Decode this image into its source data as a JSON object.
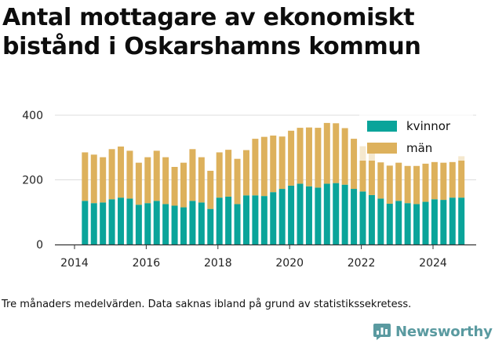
{
  "title": "Antal mottagare av ekonomiskt bistånd i Oskarshamns kommun",
  "caption": "Tre månaders medelvärden. Data saknas ibland på grund av statistikssekretess.",
  "brand": "Newsworthy",
  "colors": {
    "kvinnor": "#0aa49a",
    "man": "#ddb15c",
    "grid": "#dcdcdc",
    "axis": "#333333",
    "brand": "#5a9aa0"
  },
  "chart_data": {
    "type": "bar",
    "stacked": true,
    "x_tick_labels": [
      "2014",
      "2016",
      "2018",
      "2020",
      "2022",
      "2024"
    ],
    "y_ticks": [
      0,
      200,
      400
    ],
    "ylim": [
      0,
      400
    ],
    "legend_position": "top-right",
    "grid": "horizontal",
    "categories": [
      "2014-Q2",
      "2014-Q3",
      "2014-Q4",
      "2015-Q1",
      "2015-Q2",
      "2015-Q3",
      "2015-Q4",
      "2016-Q1",
      "2016-Q2",
      "2016-Q3",
      "2016-Q4",
      "2017-Q1",
      "2017-Q2",
      "2017-Q3",
      "2017-Q4",
      "2018-Q1",
      "2018-Q2",
      "2018-Q3",
      "2018-Q4",
      "2019-Q1",
      "2019-Q2",
      "2019-Q3",
      "2019-Q4",
      "2020-Q1",
      "2020-Q2",
      "2020-Q3",
      "2020-Q4",
      "2021-Q1",
      "2021-Q2",
      "2021-Q3",
      "2021-Q4",
      "2022-Q1",
      "2022-Q2",
      "2022-Q3",
      "2022-Q4",
      "2023-Q1",
      "2023-Q2",
      "2023-Q3",
      "2023-Q4",
      "2024-Q1",
      "2024-Q2",
      "2024-Q3",
      "2024-Q4"
    ],
    "series": [
      {
        "name": "kvinnor",
        "color": "#0aa49a",
        "values": [
          135,
          128,
          130,
          140,
          145,
          142,
          123,
          128,
          135,
          125,
          120,
          115,
          135,
          130,
          110,
          145,
          148,
          125,
          152,
          152,
          150,
          162,
          172,
          182,
          188,
          180,
          176,
          188,
          190,
          185,
          172,
          164,
          153,
          142,
          126,
          135,
          128,
          125,
          132,
          140,
          138,
          145,
          145
        ]
      },
      {
        "name": "män",
        "color": "#ddb15c",
        "values": [
          150,
          150,
          140,
          155,
          158,
          148,
          130,
          142,
          155,
          145,
          120,
          138,
          160,
          140,
          118,
          140,
          145,
          140,
          140,
          175,
          183,
          175,
          162,
          170,
          173,
          182,
          185,
          188,
          185,
          175,
          155,
          140,
          130,
          112,
          118,
          118,
          115,
          118,
          118,
          115,
          115,
          110,
          128
        ]
      }
    ]
  }
}
